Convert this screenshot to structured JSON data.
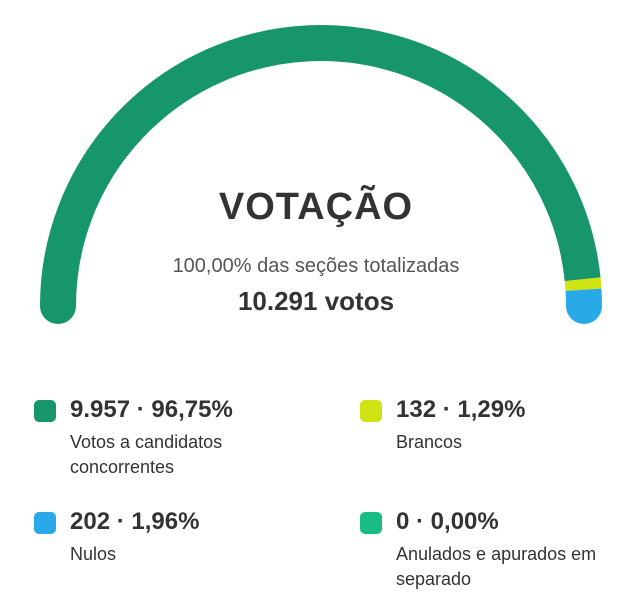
{
  "chart_data": {
    "type": "gauge",
    "title": "VOTAÇÃO",
    "subtitle": "100,00% das seções totalizadas",
    "total_label": "10.291 votos",
    "series": [
      {
        "name": "Votos a candidatos concorrentes",
        "value": 9957,
        "percent": 96.75,
        "display": "9.957 · 96,75%",
        "color": "#17956b"
      },
      {
        "name": "Brancos",
        "value": 132,
        "percent": 1.29,
        "display": "132 · 1,29%",
        "color": "#cfe313"
      },
      {
        "name": "Nulos",
        "value": 202,
        "percent": 1.96,
        "display": "202 · 1,96%",
        "color": "#2aa9e8"
      },
      {
        "name": "Anulados e apurados em separado",
        "value": 0,
        "percent": 0.0,
        "display": "0 · 0,00%",
        "color": "#16bc84"
      }
    ],
    "arc_order": [
      0,
      1,
      2
    ]
  }
}
